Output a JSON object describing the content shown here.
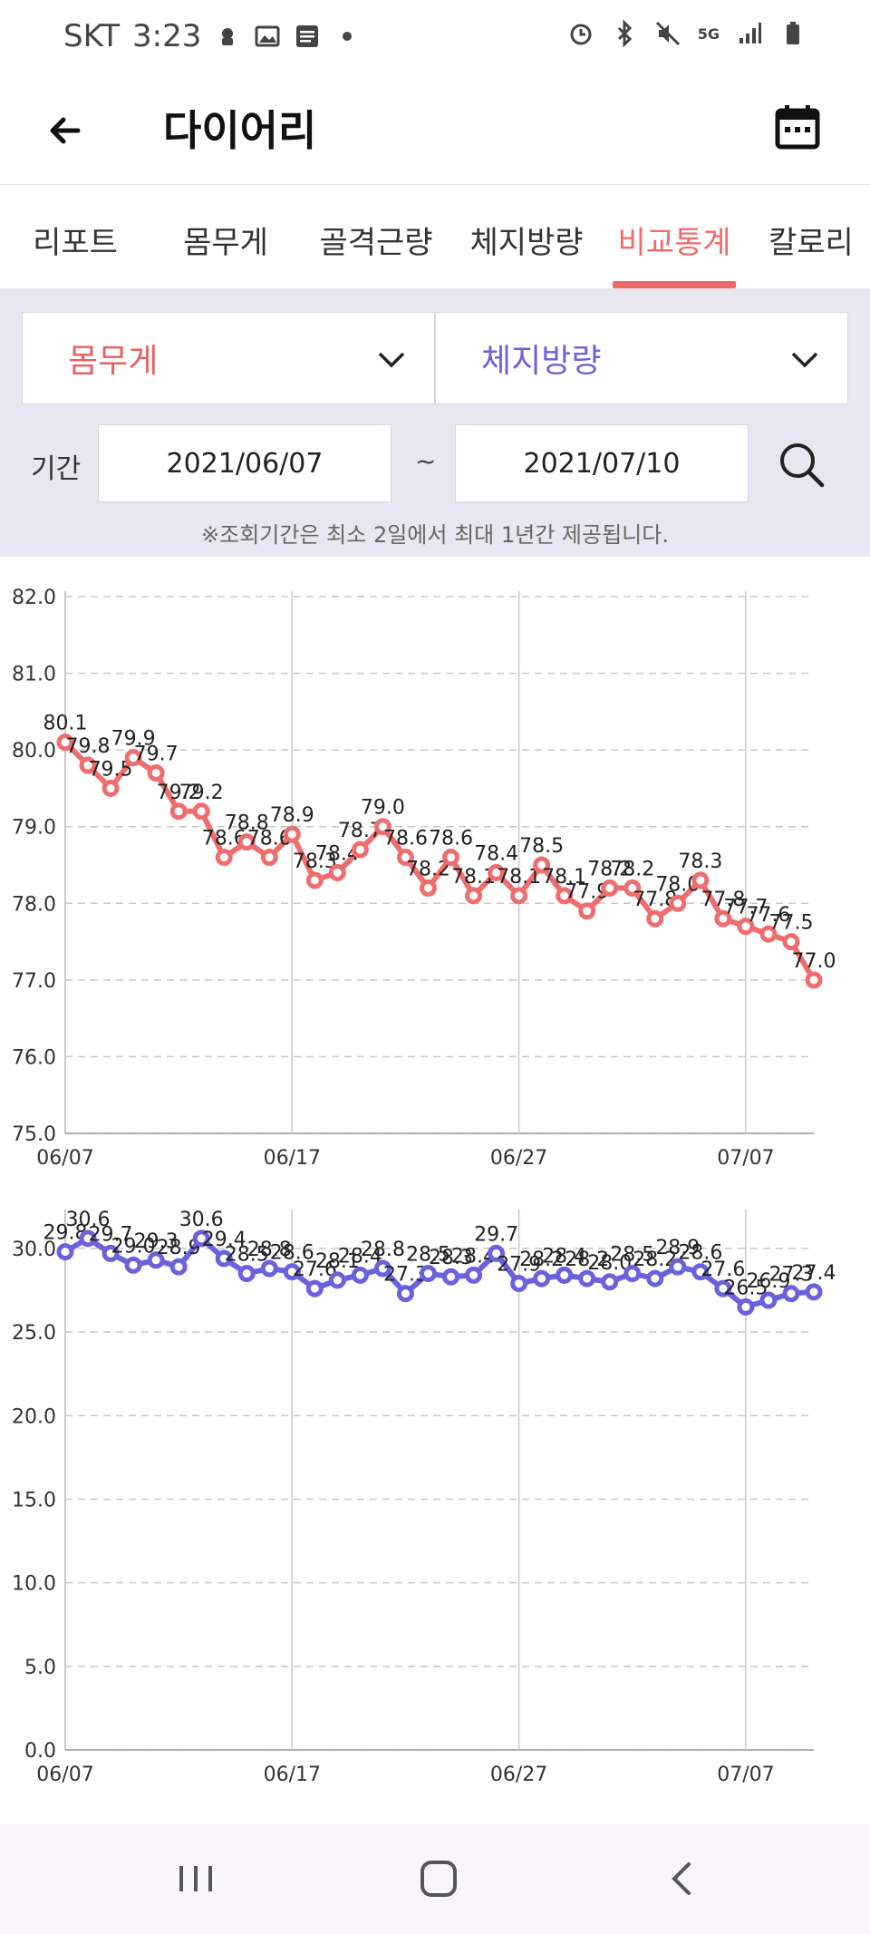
{
  "status_bar": {
    "carrier": "SKT",
    "time": "3:23",
    "network": "5G"
  },
  "header": {
    "title": "다이어리"
  },
  "tabs": [
    {
      "label": "리포트",
      "active": false
    },
    {
      "label": "몸무게",
      "active": false
    },
    {
      "label": "골격근량",
      "active": false
    },
    {
      "label": "체지방량",
      "active": false
    },
    {
      "label": "비교통계",
      "active": true
    },
    {
      "label": "칼로리",
      "active": false
    }
  ],
  "filters": {
    "metric_left": {
      "label": "몸무게",
      "color": "#e8605f"
    },
    "metric_right": {
      "label": "체지방량",
      "color": "#6b63d6"
    },
    "period_label": "기간",
    "start_date": "2021/06/07",
    "separator": "~",
    "end_date": "2021/07/10",
    "notice": "※조회기간은 최소 2일에서 최대 1년간 제공됩니다."
  },
  "chart_data": [
    {
      "type": "line",
      "series": [
        {
          "values": [
            80.1,
            79.8,
            79.5,
            79.9,
            79.7,
            79.2,
            79.2,
            78.6,
            78.8,
            78.6,
            78.9,
            78.3,
            78.4,
            78.7,
            79.0,
            78.6,
            78.2,
            78.6,
            78.1,
            78.4,
            78.1,
            78.5,
            78.1,
            77.9,
            78.2,
            78.2,
            77.8,
            78.0,
            78.3,
            77.8,
            77.7,
            77.6,
            77.5,
            77.0
          ],
          "color": "#ee6e6f"
        }
      ],
      "x_ticks": [
        "06/07",
        "06/17",
        "06/27",
        "07/07"
      ],
      "y_ticks": [
        "82.0",
        "81.0",
        "80.0",
        "79.0",
        "78.0",
        "77.0",
        "76.0",
        "75.0"
      ],
      "ylim": [
        75,
        82
      ]
    },
    {
      "type": "line",
      "series": [
        {
          "values": [
            29.8,
            30.6,
            29.7,
            29.0,
            29.3,
            28.9,
            30.6,
            29.4,
            28.5,
            28.8,
            28.6,
            27.6,
            28.1,
            28.4,
            28.8,
            27.3,
            28.5,
            28.3,
            28.4,
            29.7,
            27.9,
            28.2,
            28.4,
            28.2,
            28.0,
            28.5,
            28.2,
            28.9,
            28.6,
            27.6,
            26.5,
            26.9,
            27.3,
            27.4
          ],
          "color": "#6a62dc"
        }
      ],
      "x_ticks": [
        "06/07",
        "06/17",
        "06/27",
        "07/07"
      ],
      "y_ticks": [
        "30.0",
        "25.0",
        "20.0",
        "15.0",
        "10.0",
        "5.0",
        "0.0"
      ],
      "ylim": [
        0,
        32
      ]
    }
  ]
}
